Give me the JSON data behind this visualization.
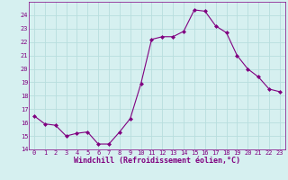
{
  "x": [
    0,
    1,
    2,
    3,
    4,
    5,
    6,
    7,
    8,
    9,
    10,
    11,
    12,
    13,
    14,
    15,
    16,
    17,
    18,
    19,
    20,
    21,
    22,
    23
  ],
  "y": [
    16.5,
    15.9,
    15.8,
    15.0,
    15.2,
    15.3,
    14.4,
    14.4,
    15.3,
    16.3,
    18.9,
    22.2,
    22.4,
    22.4,
    22.8,
    24.4,
    24.3,
    23.2,
    22.7,
    21.0,
    20.0,
    19.4,
    18.5,
    18.3
  ],
  "xlim": [
    -0.5,
    23.5
  ],
  "ylim": [
    14,
    25
  ],
  "yticks": [
    14,
    15,
    16,
    17,
    18,
    19,
    20,
    21,
    22,
    23,
    24
  ],
  "xticks": [
    0,
    1,
    2,
    3,
    4,
    5,
    6,
    7,
    8,
    9,
    10,
    11,
    12,
    13,
    14,
    15,
    16,
    17,
    18,
    19,
    20,
    21,
    22,
    23
  ],
  "xlabel": "Windchill (Refroidissement éolien,°C)",
  "line_color": "#800080",
  "marker": "D",
  "marker_size": 2,
  "bg_color": "#d6f0f0",
  "grid_color": "#b8dede",
  "tick_color": "#800080",
  "label_color": "#800080",
  "tick_fontsize": 5.0,
  "xlabel_fontsize": 6.0
}
